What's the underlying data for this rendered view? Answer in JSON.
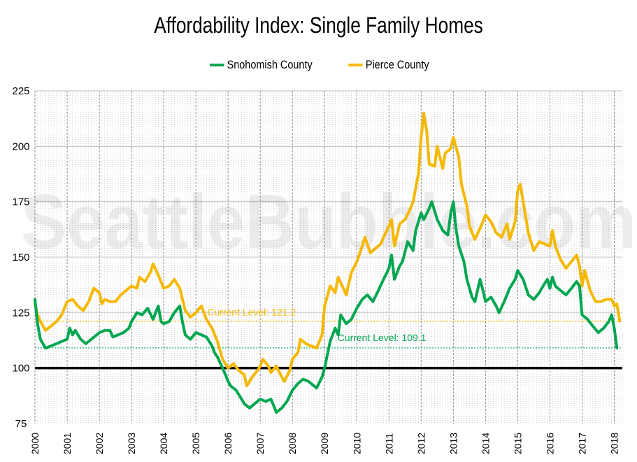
{
  "chart_data": {
    "type": "line",
    "title": "Affordability Index: Single Family Homes",
    "watermark": "SeattleBubble.com",
    "ylim": [
      75,
      225
    ],
    "yticks": [
      75,
      100,
      125,
      150,
      175,
      200,
      225
    ],
    "xlim": [
      2000,
      2018.25
    ],
    "xticks": [
      "2000",
      "2001",
      "2002",
      "2003",
      "2004",
      "2005",
      "2006",
      "2007",
      "2008",
      "2009",
      "2010",
      "2011",
      "2012",
      "2013",
      "2014",
      "2015",
      "2016",
      "2017",
      "2018"
    ],
    "reference_line": 100,
    "series": [
      {
        "name": "Snohomish County",
        "color": "#00a651",
        "current_label": "Current Level: 109.1",
        "current_value": 109.1,
        "points": [
          [
            2000.0,
            131
          ],
          [
            2000.08,
            120
          ],
          [
            2000.17,
            113
          ],
          [
            2000.25,
            111
          ],
          [
            2000.33,
            109
          ],
          [
            2000.5,
            110
          ],
          [
            2000.67,
            111
          ],
          [
            2000.83,
            112
          ],
          [
            2001.0,
            113
          ],
          [
            2001.08,
            118
          ],
          [
            2001.17,
            115
          ],
          [
            2001.25,
            117
          ],
          [
            2001.42,
            113
          ],
          [
            2001.58,
            111
          ],
          [
            2001.75,
            113
          ],
          [
            2001.92,
            115
          ],
          [
            2002.0,
            116
          ],
          [
            2002.17,
            117
          ],
          [
            2002.33,
            117
          ],
          [
            2002.42,
            114
          ],
          [
            2002.58,
            115
          ],
          [
            2002.75,
            116
          ],
          [
            2002.92,
            118
          ],
          [
            2003.0,
            121
          ],
          [
            2003.17,
            125
          ],
          [
            2003.33,
            124
          ],
          [
            2003.5,
            127
          ],
          [
            2003.67,
            122
          ],
          [
            2003.83,
            128
          ],
          [
            2003.92,
            121
          ],
          [
            2004.0,
            120
          ],
          [
            2004.17,
            121
          ],
          [
            2004.33,
            125
          ],
          [
            2004.5,
            128
          ],
          [
            2004.58,
            121
          ],
          [
            2004.67,
            115
          ],
          [
            2004.83,
            113
          ],
          [
            2005.0,
            116
          ],
          [
            2005.17,
            115
          ],
          [
            2005.33,
            114
          ],
          [
            2005.5,
            110
          ],
          [
            2005.58,
            107
          ],
          [
            2005.67,
            105
          ],
          [
            2005.83,
            100
          ],
          [
            2005.92,
            97
          ],
          [
            2006.0,
            94
          ],
          [
            2006.08,
            92
          ],
          [
            2006.25,
            90
          ],
          [
            2006.42,
            86
          ],
          [
            2006.5,
            84
          ],
          [
            2006.67,
            82
          ],
          [
            2006.83,
            84
          ],
          [
            2007.0,
            86
          ],
          [
            2007.17,
            85
          ],
          [
            2007.33,
            86
          ],
          [
            2007.42,
            83
          ],
          [
            2007.5,
            80
          ],
          [
            2007.67,
            82
          ],
          [
            2007.83,
            85
          ],
          [
            2008.0,
            90
          ],
          [
            2008.17,
            93
          ],
          [
            2008.33,
            95
          ],
          [
            2008.5,
            94
          ],
          [
            2008.67,
            92
          ],
          [
            2008.75,
            91
          ],
          [
            2008.92,
            96
          ],
          [
            2009.0,
            100
          ],
          [
            2009.17,
            112
          ],
          [
            2009.33,
            118
          ],
          [
            2009.42,
            115
          ],
          [
            2009.5,
            124
          ],
          [
            2009.67,
            120
          ],
          [
            2009.83,
            122
          ],
          [
            2010.0,
            127
          ],
          [
            2010.17,
            131
          ],
          [
            2010.33,
            133
          ],
          [
            2010.5,
            130
          ],
          [
            2010.67,
            135
          ],
          [
            2010.83,
            140
          ],
          [
            2011.0,
            145
          ],
          [
            2011.08,
            151
          ],
          [
            2011.17,
            140
          ],
          [
            2011.33,
            146
          ],
          [
            2011.42,
            148
          ],
          [
            2011.58,
            157
          ],
          [
            2011.75,
            153
          ],
          [
            2011.83,
            162
          ],
          [
            2012.0,
            170
          ],
          [
            2012.08,
            167
          ],
          [
            2012.25,
            172
          ],
          [
            2012.33,
            175
          ],
          [
            2012.5,
            167
          ],
          [
            2012.67,
            162
          ],
          [
            2012.83,
            160
          ],
          [
            2012.92,
            170
          ],
          [
            2013.0,
            175
          ],
          [
            2013.08,
            163
          ],
          [
            2013.17,
            155
          ],
          [
            2013.33,
            148
          ],
          [
            2013.42,
            140
          ],
          [
            2013.58,
            132
          ],
          [
            2013.67,
            130
          ],
          [
            2013.83,
            140
          ],
          [
            2013.92,
            135
          ],
          [
            2014.0,
            130
          ],
          [
            2014.17,
            132
          ],
          [
            2014.33,
            128
          ],
          [
            2014.42,
            125
          ],
          [
            2014.58,
            130
          ],
          [
            2014.75,
            136
          ],
          [
            2014.92,
            140
          ],
          [
            2015.0,
            144
          ],
          [
            2015.17,
            140
          ],
          [
            2015.33,
            133
          ],
          [
            2015.5,
            131
          ],
          [
            2015.67,
            134
          ],
          [
            2015.83,
            138
          ],
          [
            2015.92,
            140
          ],
          [
            2016.0,
            136
          ],
          [
            2016.08,
            141
          ],
          [
            2016.17,
            137
          ],
          [
            2016.33,
            135
          ],
          [
            2016.5,
            133
          ],
          [
            2016.67,
            136
          ],
          [
            2016.83,
            139
          ],
          [
            2016.92,
            137
          ],
          [
            2017.0,
            124
          ],
          [
            2017.17,
            122
          ],
          [
            2017.33,
            119
          ],
          [
            2017.5,
            116
          ],
          [
            2017.67,
            118
          ],
          [
            2017.83,
            121
          ],
          [
            2017.92,
            124
          ],
          [
            2018.0,
            118
          ],
          [
            2018.08,
            109.1
          ]
        ]
      },
      {
        "name": "Pierce County",
        "color": "#f5b800",
        "current_label": "Current Level: 121.2",
        "current_value": 121.2,
        "points": [
          [
            2000.0,
            129
          ],
          [
            2000.08,
            124
          ],
          [
            2000.17,
            121
          ],
          [
            2000.33,
            117
          ],
          [
            2000.5,
            119
          ],
          [
            2000.67,
            121
          ],
          [
            2000.83,
            124
          ],
          [
            2001.0,
            130
          ],
          [
            2001.17,
            131
          ],
          [
            2001.33,
            128
          ],
          [
            2001.5,
            126
          ],
          [
            2001.67,
            130
          ],
          [
            2001.75,
            133
          ],
          [
            2001.83,
            136
          ],
          [
            2002.0,
            134
          ],
          [
            2002.08,
            129
          ],
          [
            2002.17,
            131
          ],
          [
            2002.33,
            130
          ],
          [
            2002.5,
            130
          ],
          [
            2002.67,
            133
          ],
          [
            2002.83,
            135
          ],
          [
            2003.0,
            137
          ],
          [
            2003.17,
            136
          ],
          [
            2003.25,
            141
          ],
          [
            2003.42,
            139
          ],
          [
            2003.58,
            143
          ],
          [
            2003.67,
            147
          ],
          [
            2003.83,
            142
          ],
          [
            2004.0,
            136
          ],
          [
            2004.17,
            137
          ],
          [
            2004.33,
            140
          ],
          [
            2004.5,
            136
          ],
          [
            2004.67,
            126
          ],
          [
            2004.83,
            123
          ],
          [
            2005.0,
            125
          ],
          [
            2005.17,
            128
          ],
          [
            2005.33,
            122
          ],
          [
            2005.5,
            118
          ],
          [
            2005.67,
            112
          ],
          [
            2005.75,
            108
          ],
          [
            2005.83,
            104
          ],
          [
            2006.0,
            100
          ],
          [
            2006.17,
            102
          ],
          [
            2006.33,
            99
          ],
          [
            2006.5,
            97
          ],
          [
            2006.58,
            92
          ],
          [
            2006.75,
            96
          ],
          [
            2006.92,
            99
          ],
          [
            2007.0,
            101
          ],
          [
            2007.08,
            104
          ],
          [
            2007.25,
            101
          ],
          [
            2007.33,
            98
          ],
          [
            2007.5,
            101
          ],
          [
            2007.67,
            96
          ],
          [
            2007.75,
            94
          ],
          [
            2007.92,
            99
          ],
          [
            2008.0,
            104
          ],
          [
            2008.17,
            107
          ],
          [
            2008.25,
            113
          ],
          [
            2008.42,
            111
          ],
          [
            2008.58,
            110
          ],
          [
            2008.75,
            109
          ],
          [
            2008.92,
            115
          ],
          [
            2009.0,
            128
          ],
          [
            2009.17,
            137
          ],
          [
            2009.33,
            134
          ],
          [
            2009.42,
            141
          ],
          [
            2009.58,
            136
          ],
          [
            2009.67,
            133
          ],
          [
            2009.83,
            143
          ],
          [
            2010.0,
            148
          ],
          [
            2010.17,
            155
          ],
          [
            2010.25,
            159
          ],
          [
            2010.42,
            152
          ],
          [
            2010.58,
            154
          ],
          [
            2010.75,
            156
          ],
          [
            2010.83,
            159
          ],
          [
            2011.0,
            164
          ],
          [
            2011.08,
            167
          ],
          [
            2011.17,
            155
          ],
          [
            2011.33,
            165
          ],
          [
            2011.5,
            167
          ],
          [
            2011.67,
            172
          ],
          [
            2011.75,
            175
          ],
          [
            2011.92,
            188
          ],
          [
            2012.0,
            204
          ],
          [
            2012.08,
            215
          ],
          [
            2012.17,
            207
          ],
          [
            2012.25,
            192
          ],
          [
            2012.42,
            191
          ],
          [
            2012.5,
            200
          ],
          [
            2012.67,
            190
          ],
          [
            2012.75,
            197
          ],
          [
            2012.92,
            199
          ],
          [
            2013.0,
            204
          ],
          [
            2013.17,
            195
          ],
          [
            2013.25,
            183
          ],
          [
            2013.42,
            173
          ],
          [
            2013.5,
            164
          ],
          [
            2013.67,
            158
          ],
          [
            2013.83,
            163
          ],
          [
            2014.0,
            169
          ],
          [
            2014.17,
            166
          ],
          [
            2014.33,
            161
          ],
          [
            2014.5,
            159
          ],
          [
            2014.67,
            165
          ],
          [
            2014.75,
            158
          ],
          [
            2014.92,
            166
          ],
          [
            2015.0,
            180
          ],
          [
            2015.08,
            183
          ],
          [
            2015.17,
            175
          ],
          [
            2015.33,
            161
          ],
          [
            2015.5,
            153
          ],
          [
            2015.67,
            157
          ],
          [
            2015.83,
            156
          ],
          [
            2016.0,
            155
          ],
          [
            2016.08,
            162
          ],
          [
            2016.17,
            155
          ],
          [
            2016.33,
            149
          ],
          [
            2016.5,
            145
          ],
          [
            2016.67,
            148
          ],
          [
            2016.83,
            151
          ],
          [
            2016.92,
            146
          ],
          [
            2017.0,
            137
          ],
          [
            2017.08,
            144
          ],
          [
            2017.25,
            135
          ],
          [
            2017.42,
            130
          ],
          [
            2017.58,
            130
          ],
          [
            2017.75,
            131
          ],
          [
            2017.92,
            131
          ],
          [
            2018.0,
            128
          ],
          [
            2018.08,
            129
          ],
          [
            2018.17,
            121.2
          ]
        ]
      }
    ]
  }
}
